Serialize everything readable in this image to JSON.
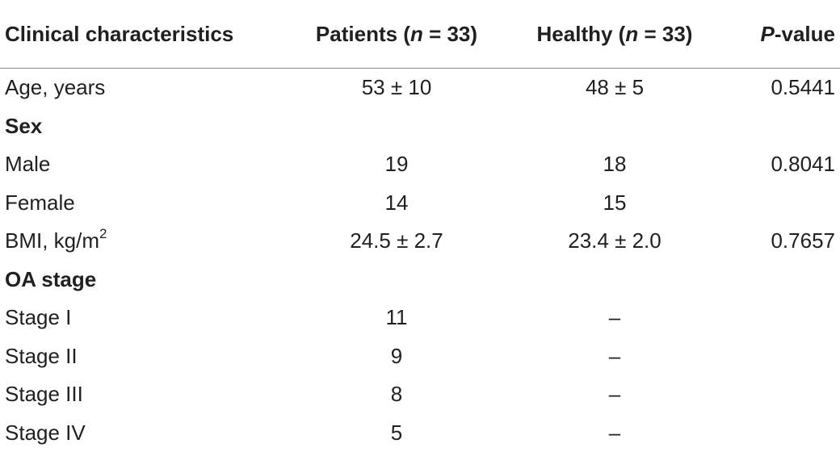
{
  "header": {
    "col1": "Clinical characteristics",
    "col2_prefix": "Patients (",
    "col2_n": "n",
    "col2_suffix": " = 33)",
    "col3_prefix": "Healthy (",
    "col3_n": "n",
    "col3_suffix": " = 33)",
    "col4_p": "P",
    "col4_suffix": "-value"
  },
  "rows": [
    {
      "label": "Age, years",
      "patients": "53 ± 10",
      "healthy": "48 ± 5",
      "pvalue": "0.5441"
    },
    {
      "label": "Sex"
    },
    {
      "label": "Male",
      "patients": "19",
      "healthy": "18",
      "pvalue": "0.8041"
    },
    {
      "label": "Female",
      "patients": "14",
      "healthy": "15",
      "pvalue": ""
    },
    {
      "label": "BMI, kg/m",
      "label_sup": "2",
      "patients": "24.5 ± 2.7",
      "healthy": "23.4 ± 2.0",
      "pvalue": "0.7657"
    },
    {
      "label": "OA stage"
    },
    {
      "label": "Stage I",
      "patients": "11",
      "healthy": "–",
      "pvalue": ""
    },
    {
      "label": "Stage II",
      "patients": "9",
      "healthy": "–",
      "pvalue": ""
    },
    {
      "label": "Stage III",
      "patients": "8",
      "healthy": "–",
      "pvalue": ""
    },
    {
      "label": "Stage IV",
      "patients": "5",
      "healthy": "–",
      "pvalue": ""
    }
  ]
}
